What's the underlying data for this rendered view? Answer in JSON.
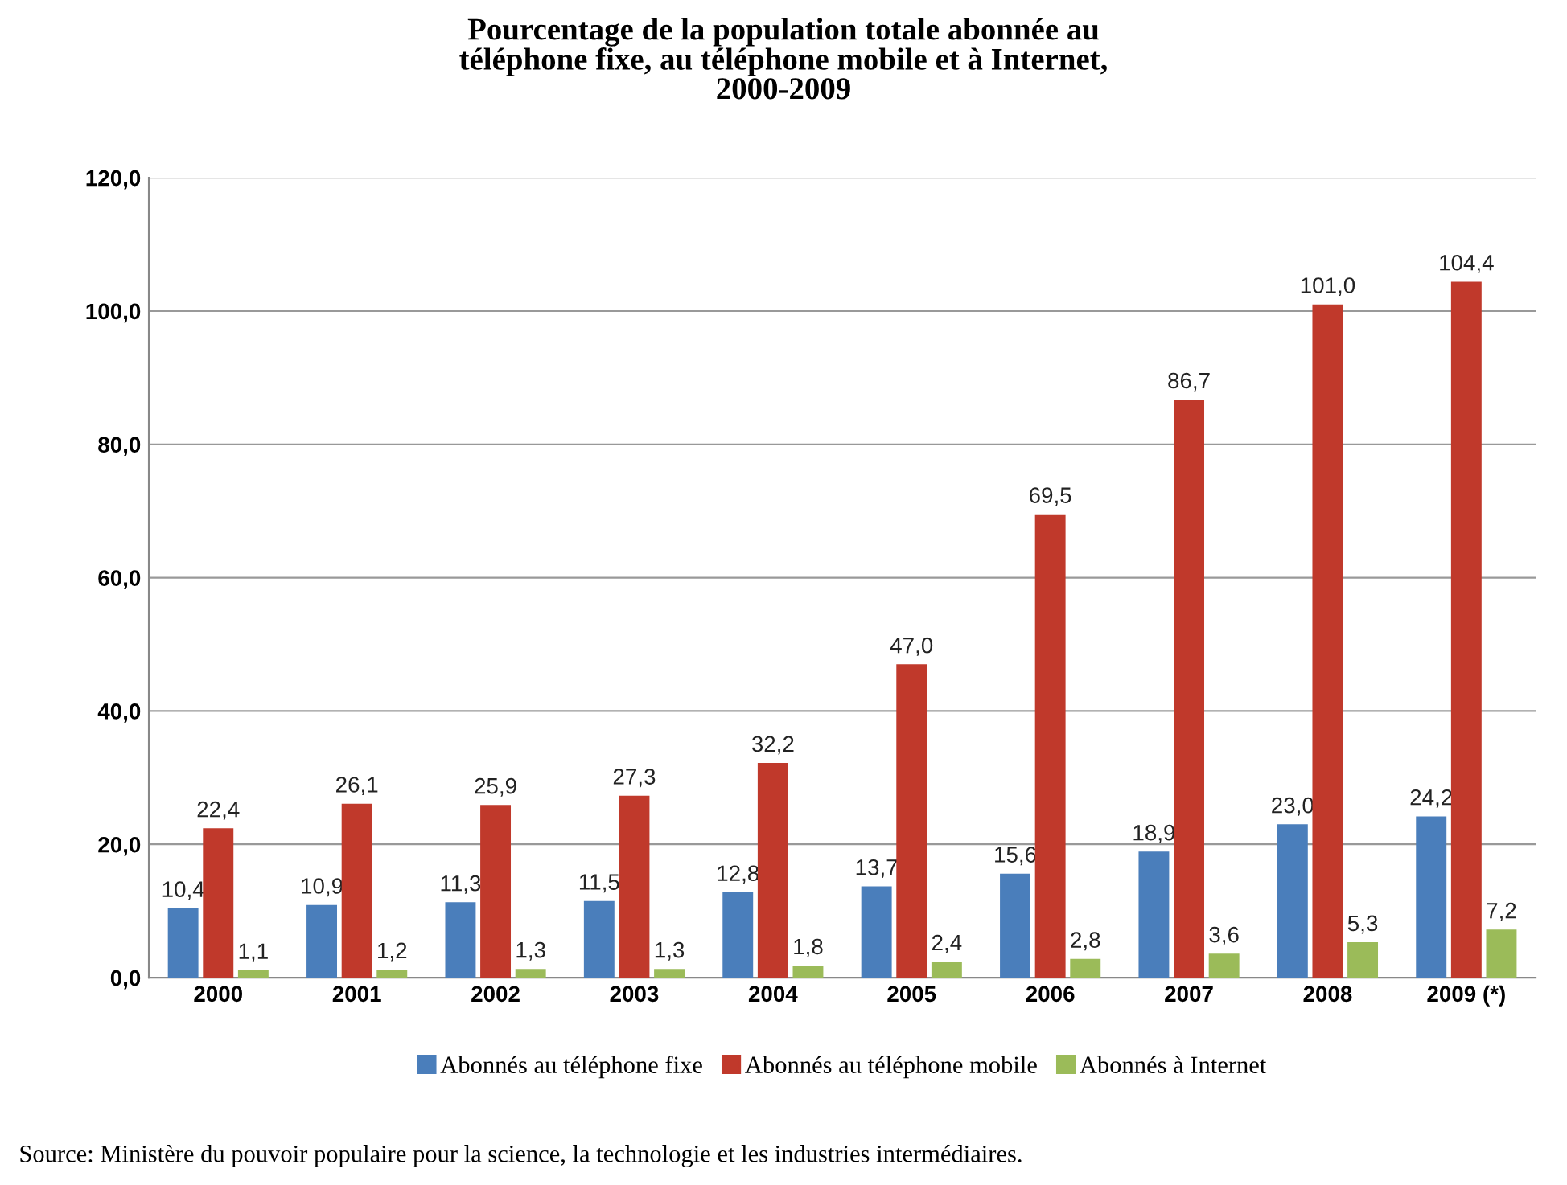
{
  "chart_data": {
    "type": "bar",
    "title": "Pourcentage de la population totale abonnée au\ntéléphone fixe, au téléphone mobile et à Internet,\n2000-2009",
    "categories": [
      "2000",
      "2001",
      "2002",
      "2003",
      "2004",
      "2005",
      "2006",
      "2007",
      "2008",
      "2009 (*)"
    ],
    "series": [
      {
        "name": "Abonnés au téléphone fixe",
        "color": "#4a7ebb",
        "values": [
          10.4,
          10.9,
          11.3,
          11.5,
          12.8,
          13.7,
          15.6,
          18.9,
          23.0,
          24.2
        ],
        "value_labels": [
          "10,4",
          "10,9",
          "11,3",
          "11,5",
          "12,8",
          "13,7",
          "15,6",
          "18,9",
          "23,0",
          "24,2"
        ]
      },
      {
        "name": "Abonnés au téléphone mobile",
        "color": "#c0392b",
        "values": [
          22.4,
          26.1,
          25.9,
          27.3,
          32.2,
          47.0,
          69.5,
          86.7,
          101.0,
          104.4
        ],
        "value_labels": [
          "22,4",
          "26,1",
          "25,9",
          "27,3",
          "32,2",
          "47,0",
          "69,5",
          "86,7",
          "101,0",
          "104,4"
        ]
      },
      {
        "name": "Abonnés à Internet",
        "color": "#9bbb59",
        "values": [
          1.1,
          1.2,
          1.3,
          1.3,
          1.8,
          2.4,
          2.8,
          3.6,
          5.3,
          7.2
        ],
        "value_labels": [
          "1,1",
          "1,2",
          "1,3",
          "1,3",
          "1,8",
          "2,4",
          "2,8",
          "3,6",
          "5,3",
          "7,2"
        ]
      }
    ],
    "ylim": [
      0,
      120
    ],
    "yticks": [
      {
        "value": 0,
        "label": "0,0"
      },
      {
        "value": 20,
        "label": "20,0"
      },
      {
        "value": 40,
        "label": "40,0"
      },
      {
        "value": 60,
        "label": "60,0"
      },
      {
        "value": 80,
        "label": "80,0"
      },
      {
        "value": 100,
        "label": "100,0"
      },
      {
        "value": 120,
        "label": "120,0"
      }
    ],
    "grid": "y",
    "legend": "bottom",
    "annotations": [
      "Source: Ministère du pouvoir populaire pour la science, la technologie et les industries intermédiaires."
    ]
  }
}
